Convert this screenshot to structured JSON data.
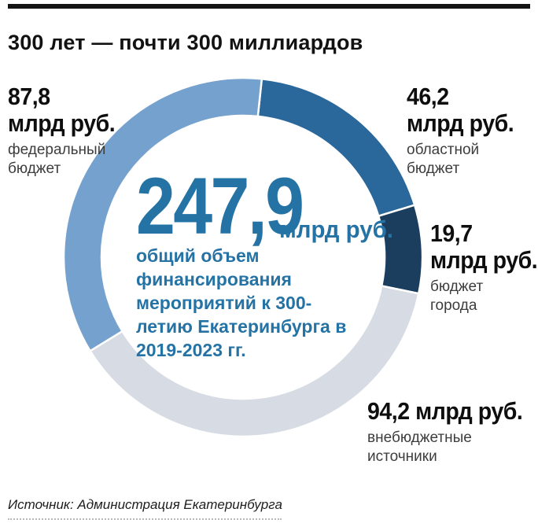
{
  "page": {
    "title": "300 лет — почти 300 миллиардов",
    "source": "Источник: Администрация Екатеринбурга"
  },
  "center": {
    "value": "247,9",
    "unit": "млрд руб.",
    "description": "общий объем финансирования мероприятий к 300-летию Екатеринбурга в 2019-2023 гг.",
    "accent_color": "#2573a5"
  },
  "callouts": {
    "federal": {
      "value": "87,8",
      "unit": "млрд руб.",
      "line1": "федеральный",
      "line2": "бюджет"
    },
    "regional": {
      "value": "46,2",
      "unit": "млрд руб.",
      "line1": "областной",
      "line2": "бюджет"
    },
    "city": {
      "value": "19,7",
      "unit": "млрд руб.",
      "line1": "бюджет",
      "line2": "города"
    },
    "offbudget": {
      "value_line": "94,2 млрд руб.",
      "line1": "внебюджетные",
      "line2": "источники"
    }
  },
  "chart_data": {
    "type": "pie",
    "subtype": "donut",
    "title": "300 лет — почти 300 миллиардов",
    "total": 247.9,
    "unit": "млрд руб.",
    "start_angle_deg": 6,
    "direction": "clockwise",
    "segments": [
      {
        "label": "областной бюджет",
        "value": 46.2,
        "color": "#2a689b"
      },
      {
        "label": "бюджет города",
        "value": 19.7,
        "color": "#1b3e5f"
      },
      {
        "label": "внебюджетные источники",
        "value": 94.2,
        "color": "#d7dbe3"
      },
      {
        "label": "федеральный бюджет",
        "value": 87.8,
        "color": "#74a1cd"
      }
    ],
    "separator_color": "#ffffff"
  }
}
